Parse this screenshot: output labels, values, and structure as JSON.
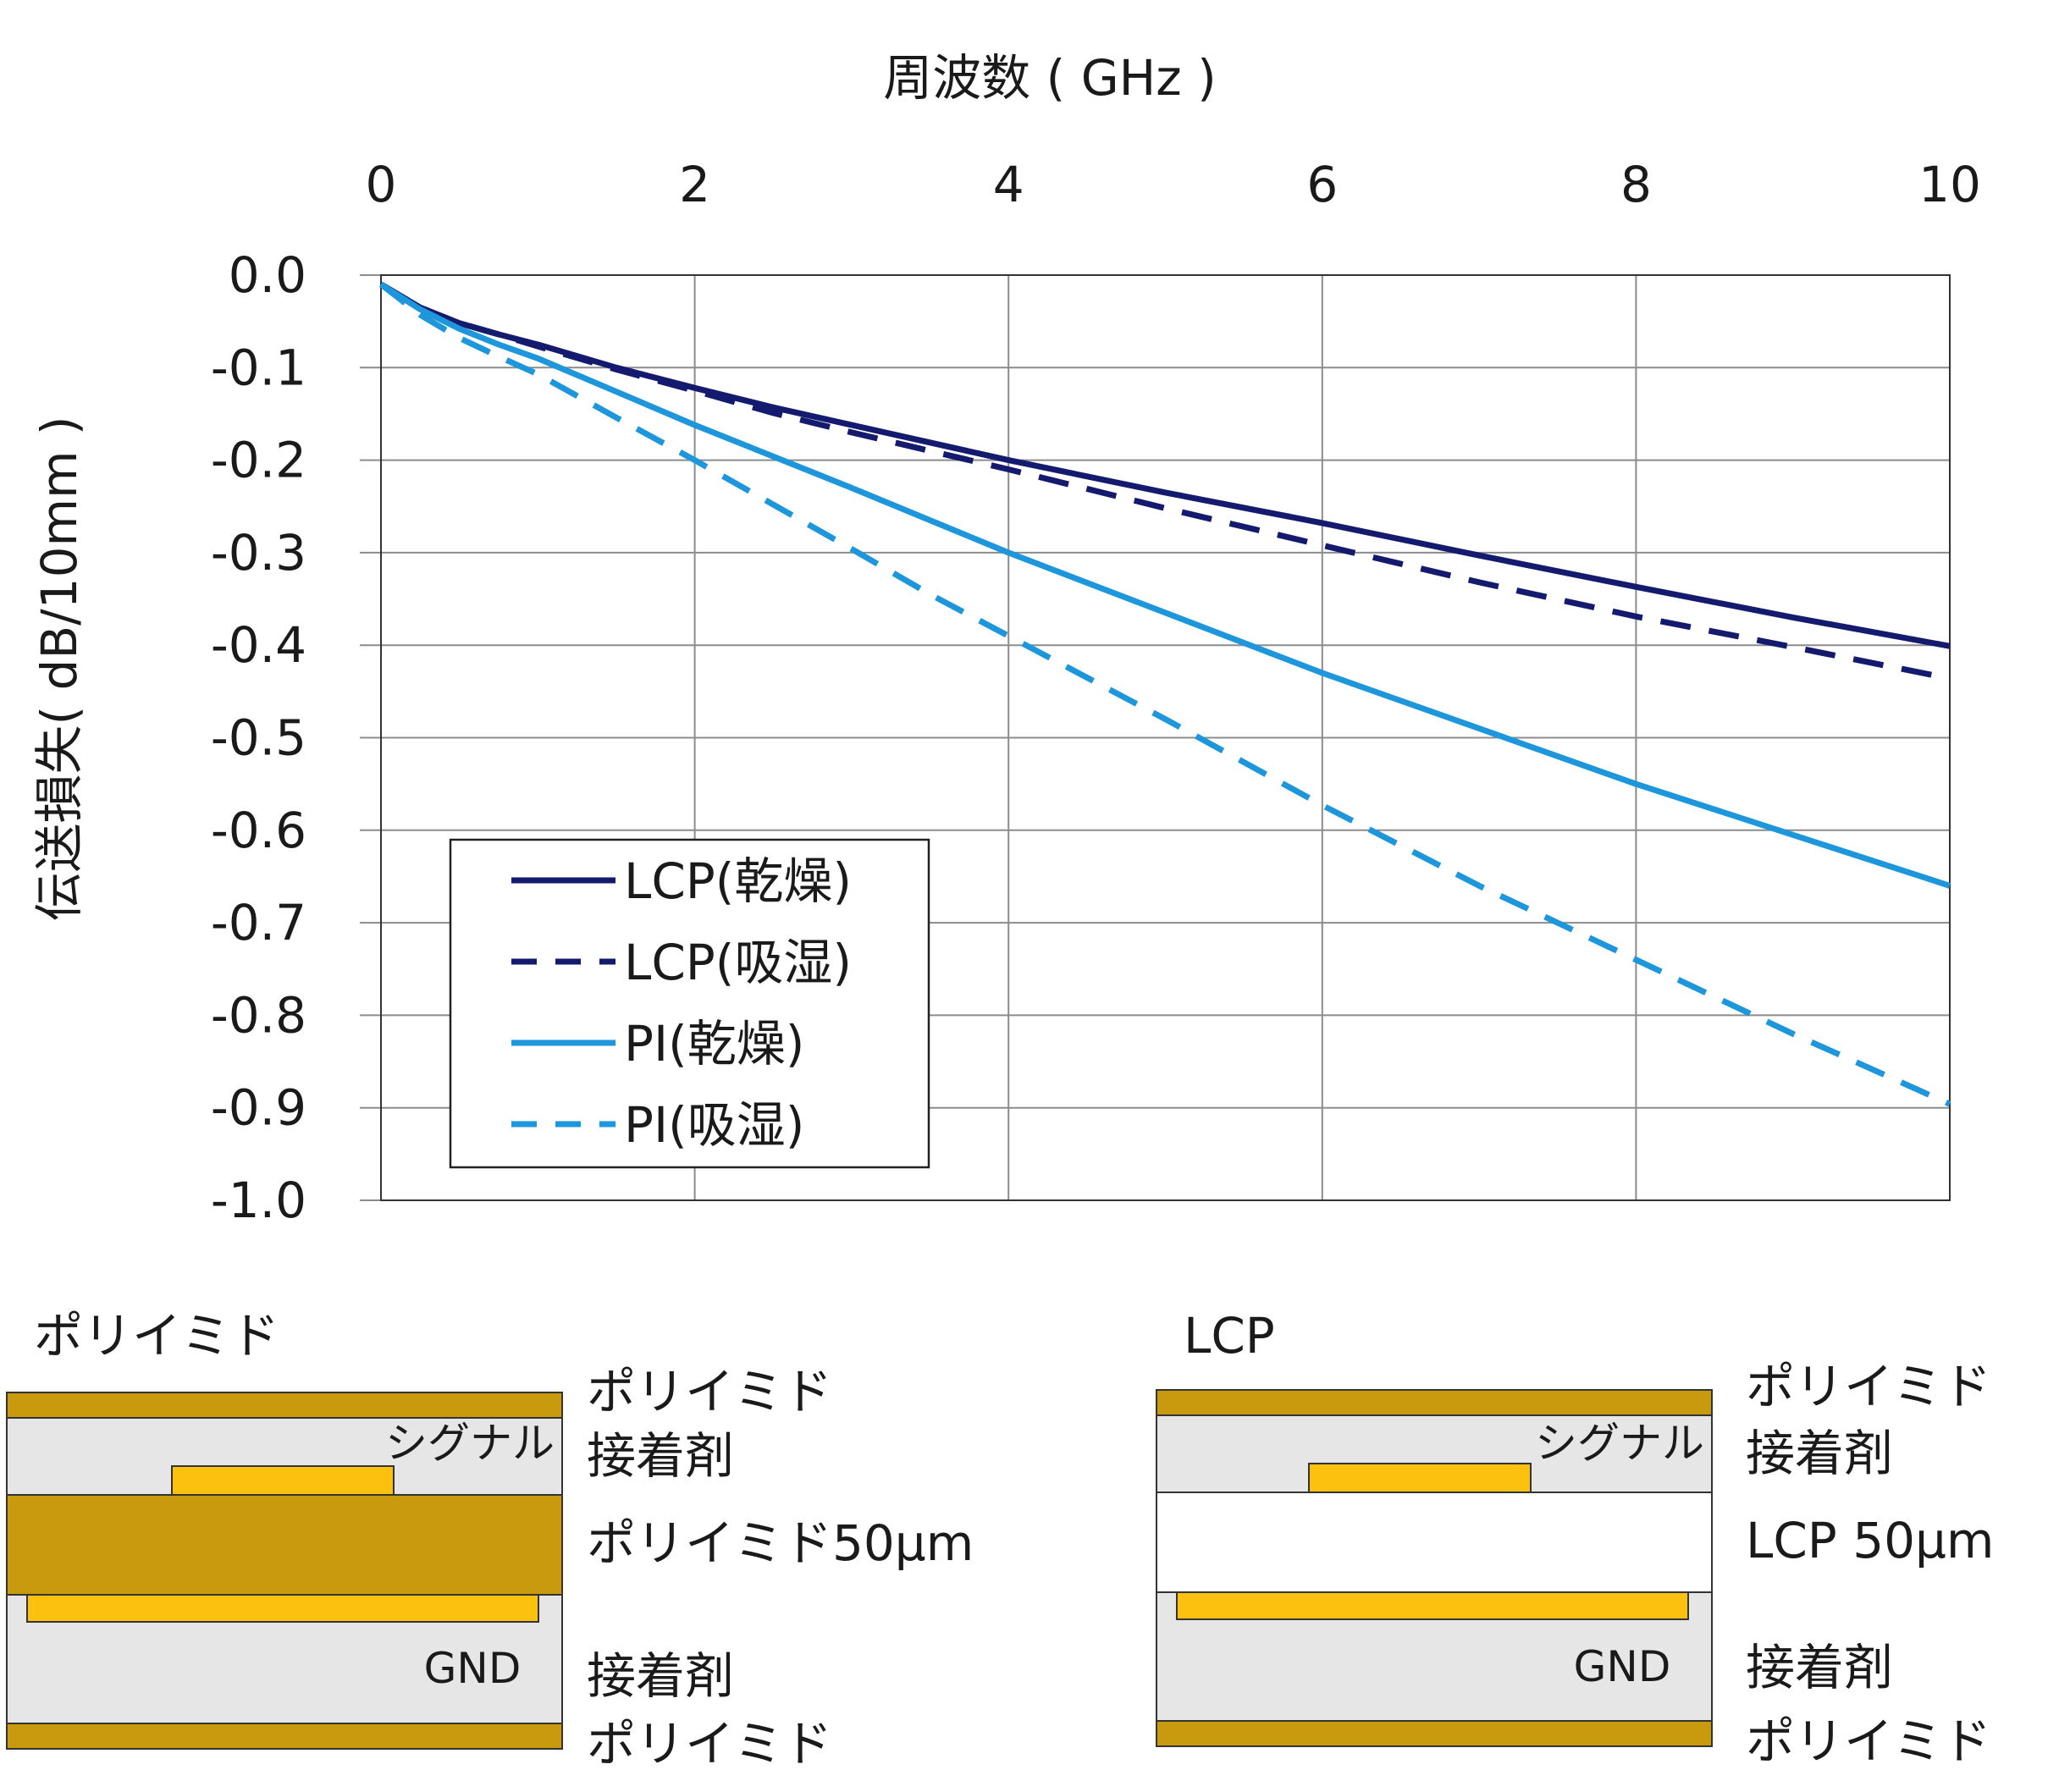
{
  "chart_data": {
    "type": "line",
    "title": "",
    "xlabel": "周波数 ( GHz )",
    "ylabel": "伝送損失( dB/10mm )",
    "xlim": [
      0,
      10
    ],
    "ylim": [
      -1.0,
      0.0
    ],
    "x_ticks": [
      0,
      2,
      4,
      6,
      8,
      10
    ],
    "x_tick_labels": [
      "0",
      "2",
      "4",
      "6",
      "8",
      "10"
    ],
    "y_ticks": [
      0.0,
      -0.1,
      -0.2,
      -0.3,
      -0.4,
      -0.5,
      -0.6,
      -0.7,
      -0.8,
      -0.9,
      -1.0
    ],
    "y_tick_labels": [
      "0.0",
      "-0.1",
      "-0.2",
      "-0.3",
      "-0.4",
      "-0.5",
      "-0.6",
      "-0.7",
      "-0.8",
      "-0.9",
      "-1.0"
    ],
    "x_axis_position": "top",
    "grid": true,
    "legend_position": "bottom-left",
    "x": [
      0,
      0.25,
      0.5,
      0.75,
      1,
      1.5,
      2,
      2.5,
      3,
      3.5,
      4,
      5,
      6,
      7,
      8,
      9,
      10
    ],
    "series": [
      {
        "name": "LCP(乾燥)",
        "color": "#141a6e",
        "dash": "solid",
        "values": [
          -0.01,
          -0.035,
          -0.052,
          -0.064,
          -0.075,
          -0.1,
          -0.122,
          -0.143,
          -0.162,
          -0.181,
          -0.2,
          -0.235,
          -0.268,
          -0.303,
          -0.337,
          -0.37,
          -0.401
        ]
      },
      {
        "name": "LCP(吸湿)",
        "color": "#141a6e",
        "dash": "dashed",
        "values": [
          -0.01,
          -0.035,
          -0.052,
          -0.064,
          -0.077,
          -0.102,
          -0.125,
          -0.149,
          -0.17,
          -0.19,
          -0.21,
          -0.252,
          -0.292,
          -0.332,
          -0.369,
          -0.402,
          -0.436
        ]
      },
      {
        "name": "PI(乾燥)",
        "color": "#1e96dc",
        "dash": "solid",
        "values": [
          -0.01,
          -0.037,
          -0.058,
          -0.075,
          -0.09,
          -0.126,
          -0.162,
          -0.196,
          -0.23,
          -0.265,
          -0.3,
          -0.365,
          -0.43,
          -0.49,
          -0.55,
          -0.605,
          -0.66
        ]
      },
      {
        "name": "PI(吸湿)",
        "color": "#1e96dc",
        "dash": "dashed",
        "values": [
          -0.01,
          -0.043,
          -0.068,
          -0.088,
          -0.107,
          -0.154,
          -0.2,
          -0.248,
          -0.296,
          -0.345,
          -0.39,
          -0.48,
          -0.573,
          -0.66,
          -0.74,
          -0.82,
          -0.896
        ]
      }
    ]
  },
  "diagrams": {
    "colors": {
      "polyimide": "#c99a0e",
      "copper": "#fcc00e",
      "adhesive": "#e6e6e6",
      "lcp": "#ffffff",
      "outline": "#333333"
    },
    "left": {
      "title": "ポリイミド",
      "signal_label": "シグナル",
      "gnd_label": "GND",
      "labels": [
        "ポリイミド",
        "接着剤",
        "ポリイミド50μm",
        "接着剤",
        "ポリイミド"
      ]
    },
    "right": {
      "title": "LCP",
      "signal_label": "シグナル",
      "gnd_label": "GND",
      "labels": [
        "ポリイミド",
        "接着剤",
        "LCP 50μm",
        "接着剤",
        "ポリイミド"
      ]
    }
  }
}
